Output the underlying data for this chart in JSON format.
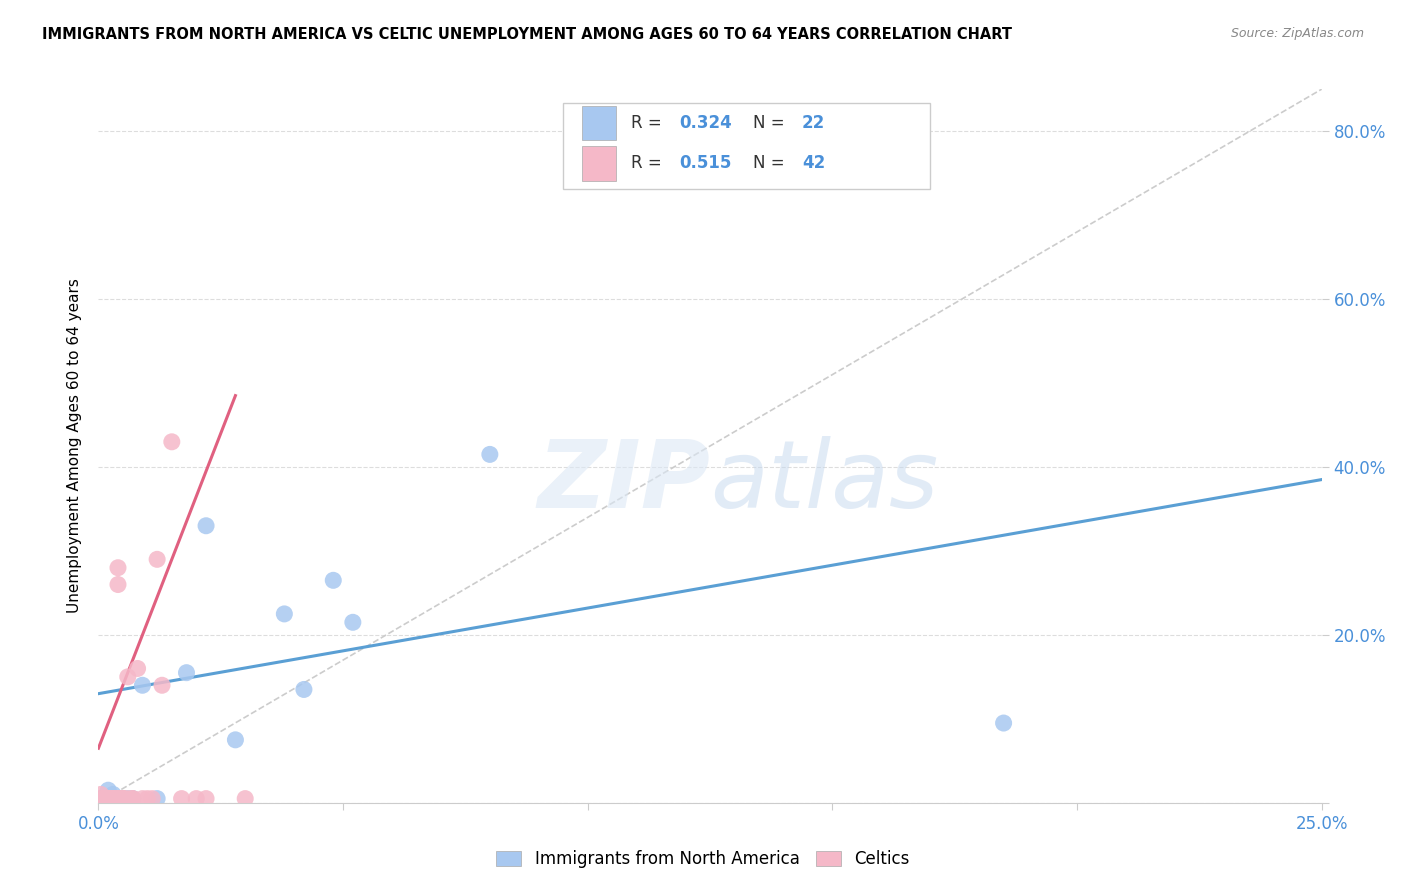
{
  "title": "IMMIGRANTS FROM NORTH AMERICA VS CELTIC UNEMPLOYMENT AMONG AGES 60 TO 64 YEARS CORRELATION CHART",
  "source": "Source: ZipAtlas.com",
  "ylabel": "Unemployment Among Ages 60 to 64 years",
  "xlim": [
    0.0,
    0.25
  ],
  "ylim": [
    0.0,
    0.85
  ],
  "xticks": [
    0.0,
    0.05,
    0.1,
    0.15,
    0.2,
    0.25
  ],
  "yticks": [
    0.0,
    0.2,
    0.4,
    0.6,
    0.8
  ],
  "ytick_labels_right": [
    "",
    "20.0%",
    "40.0%",
    "60.0%",
    "80.0%"
  ],
  "xtick_labels": [
    "0.0%",
    "",
    "",
    "",
    "",
    "25.0%"
  ],
  "blue_color": "#a8c8f0",
  "pink_color": "#f5b8c8",
  "line_blue": "#5a9fd4",
  "line_pink": "#e06080",
  "diagonal_color": "#cccccc",
  "blue_scatter_x": [
    0.0005,
    0.001,
    0.0015,
    0.002,
    0.002,
    0.003,
    0.003,
    0.004,
    0.005,
    0.006,
    0.007,
    0.009,
    0.012,
    0.018,
    0.022,
    0.028,
    0.038,
    0.042,
    0.048,
    0.052,
    0.08,
    0.185
  ],
  "blue_scatter_y": [
    0.005,
    0.005,
    0.005,
    0.005,
    0.015,
    0.005,
    0.01,
    0.005,
    0.005,
    0.005,
    0.005,
    0.14,
    0.005,
    0.155,
    0.33,
    0.075,
    0.225,
    0.135,
    0.265,
    0.215,
    0.415,
    0.095
  ],
  "pink_scatter_x": [
    0.0005,
    0.0005,
    0.001,
    0.001,
    0.001,
    0.001,
    0.001,
    0.0015,
    0.0015,
    0.002,
    0.002,
    0.002,
    0.002,
    0.003,
    0.003,
    0.003,
    0.003,
    0.003,
    0.004,
    0.004,
    0.004,
    0.004,
    0.004,
    0.005,
    0.005,
    0.005,
    0.005,
    0.006,
    0.006,
    0.007,
    0.007,
    0.008,
    0.009,
    0.01,
    0.011,
    0.012,
    0.013,
    0.015,
    0.017,
    0.02,
    0.022,
    0.03
  ],
  "pink_scatter_y": [
    0.005,
    0.01,
    0.005,
    0.005,
    0.005,
    0.005,
    0.005,
    0.005,
    0.005,
    0.005,
    0.005,
    0.005,
    0.005,
    0.005,
    0.005,
    0.005,
    0.005,
    0.005,
    0.26,
    0.28,
    0.005,
    0.005,
    0.005,
    0.005,
    0.005,
    0.005,
    0.005,
    0.005,
    0.15,
    0.005,
    0.005,
    0.16,
    0.005,
    0.005,
    0.005,
    0.29,
    0.14,
    0.43,
    0.005,
    0.005,
    0.005,
    0.005
  ],
  "blue_line_x": [
    0.0,
    0.25
  ],
  "blue_line_y": [
    0.13,
    0.385
  ],
  "pink_line_x": [
    0.0,
    0.028
  ],
  "pink_line_y": [
    0.065,
    0.485
  ],
  "legend_items": [
    {
      "label": "R = 0.324  N = 22",
      "color": "#a8c8f0"
    },
    {
      "label": "R = 0.515  N = 42",
      "color": "#f5b8c8"
    }
  ]
}
